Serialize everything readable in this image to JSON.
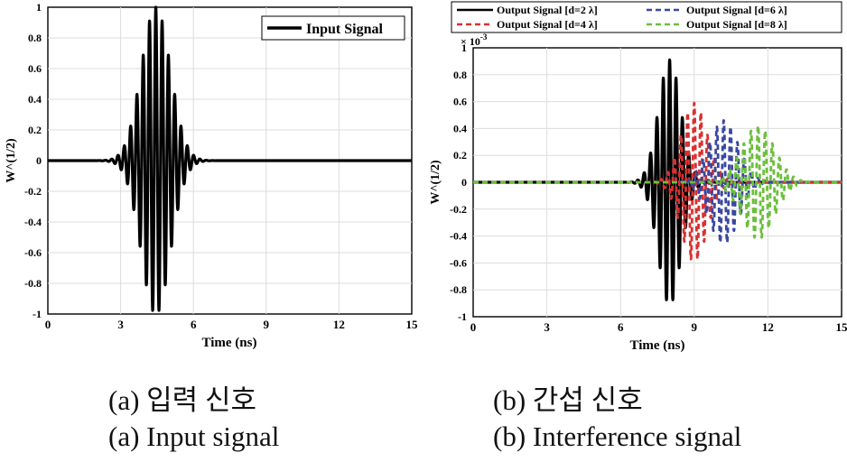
{
  "chart_data": [
    {
      "type": "line",
      "panel": "a",
      "xlabel": "Time (ns)",
      "ylabel": "W^(1/2)",
      "xlim": [
        0,
        15
      ],
      "ylim": [
        -1,
        1
      ],
      "x_ticks": [
        0,
        3,
        6,
        9,
        12,
        15
      ],
      "y_ticks": [
        -1,
        -0.8,
        -0.6,
        -0.4,
        -0.2,
        0,
        0.2,
        0.4,
        0.6,
        0.8,
        1
      ],
      "x_tick_labels": [
        "0",
        "3",
        "6",
        "9",
        "12",
        "15"
      ],
      "y_tick_labels": [
        "-1",
        "-0.8",
        "-0.6",
        "-0.4",
        "-0.2",
        "0",
        "0.2",
        "0.4",
        "0.6",
        "0.8",
        "1"
      ],
      "grid": true,
      "legend": "top-right",
      "series": [
        {
          "name": "Input Signal",
          "color": "#000000",
          "style": "solid",
          "center": 4.45,
          "amplitude": 1.0,
          "envelope_width": 0.85,
          "period": 0.26
        }
      ]
    },
    {
      "type": "line",
      "panel": "b",
      "xlabel": "Time (ns)",
      "ylabel": "W^(1/2)",
      "y_exponent": "× 10",
      "y_exponent_power": "-3",
      "xlim": [
        0,
        15
      ],
      "ylim": [
        -1,
        1
      ],
      "x_ticks": [
        0,
        3,
        6,
        9,
        12,
        15
      ],
      "y_ticks": [
        -1,
        -0.8,
        -0.6,
        -0.4,
        -0.2,
        0,
        0.2,
        0.4,
        0.6,
        0.8,
        1
      ],
      "x_tick_labels": [
        "0",
        "3",
        "6",
        "9",
        "12",
        "15"
      ],
      "y_tick_labels": [
        "-1",
        "-0.8",
        "-0.6",
        "-0.4",
        "-0.2",
        "0",
        "0.2",
        "0.4",
        "0.6",
        "0.8",
        "1"
      ],
      "grid": true,
      "legend": "top, outside",
      "series": [
        {
          "name": "Output Signal [d=2 λ]",
          "color": "#000000",
          "style": "solid",
          "center": 8.0,
          "amplitude": 0.91,
          "envelope_width": 0.65,
          "period": 0.26
        },
        {
          "name": "Output Signal [d=4 λ]",
          "color": "#d93030",
          "style": "dashed",
          "center": 9.0,
          "amplitude": 0.59,
          "envelope_width": 0.75,
          "period": 0.27
        },
        {
          "name": "Output Signal [d=6 λ]",
          "color": "#3a47a0",
          "style": "dashed",
          "center": 10.2,
          "amplitude": 0.46,
          "envelope_width": 0.85,
          "period": 0.28
        },
        {
          "name": "Output Signal [d=8 λ]",
          "color": "#6cbf3c",
          "style": "dashed",
          "center": 11.6,
          "amplitude": 0.42,
          "envelope_width": 0.95,
          "period": 0.29
        }
      ]
    }
  ],
  "captions": {
    "a_korean": "(a) 입력 신호",
    "a_english": "(a) Input signal",
    "b_korean": "(b) 간섭 신호",
    "b_english": "(b) Interference signal"
  }
}
